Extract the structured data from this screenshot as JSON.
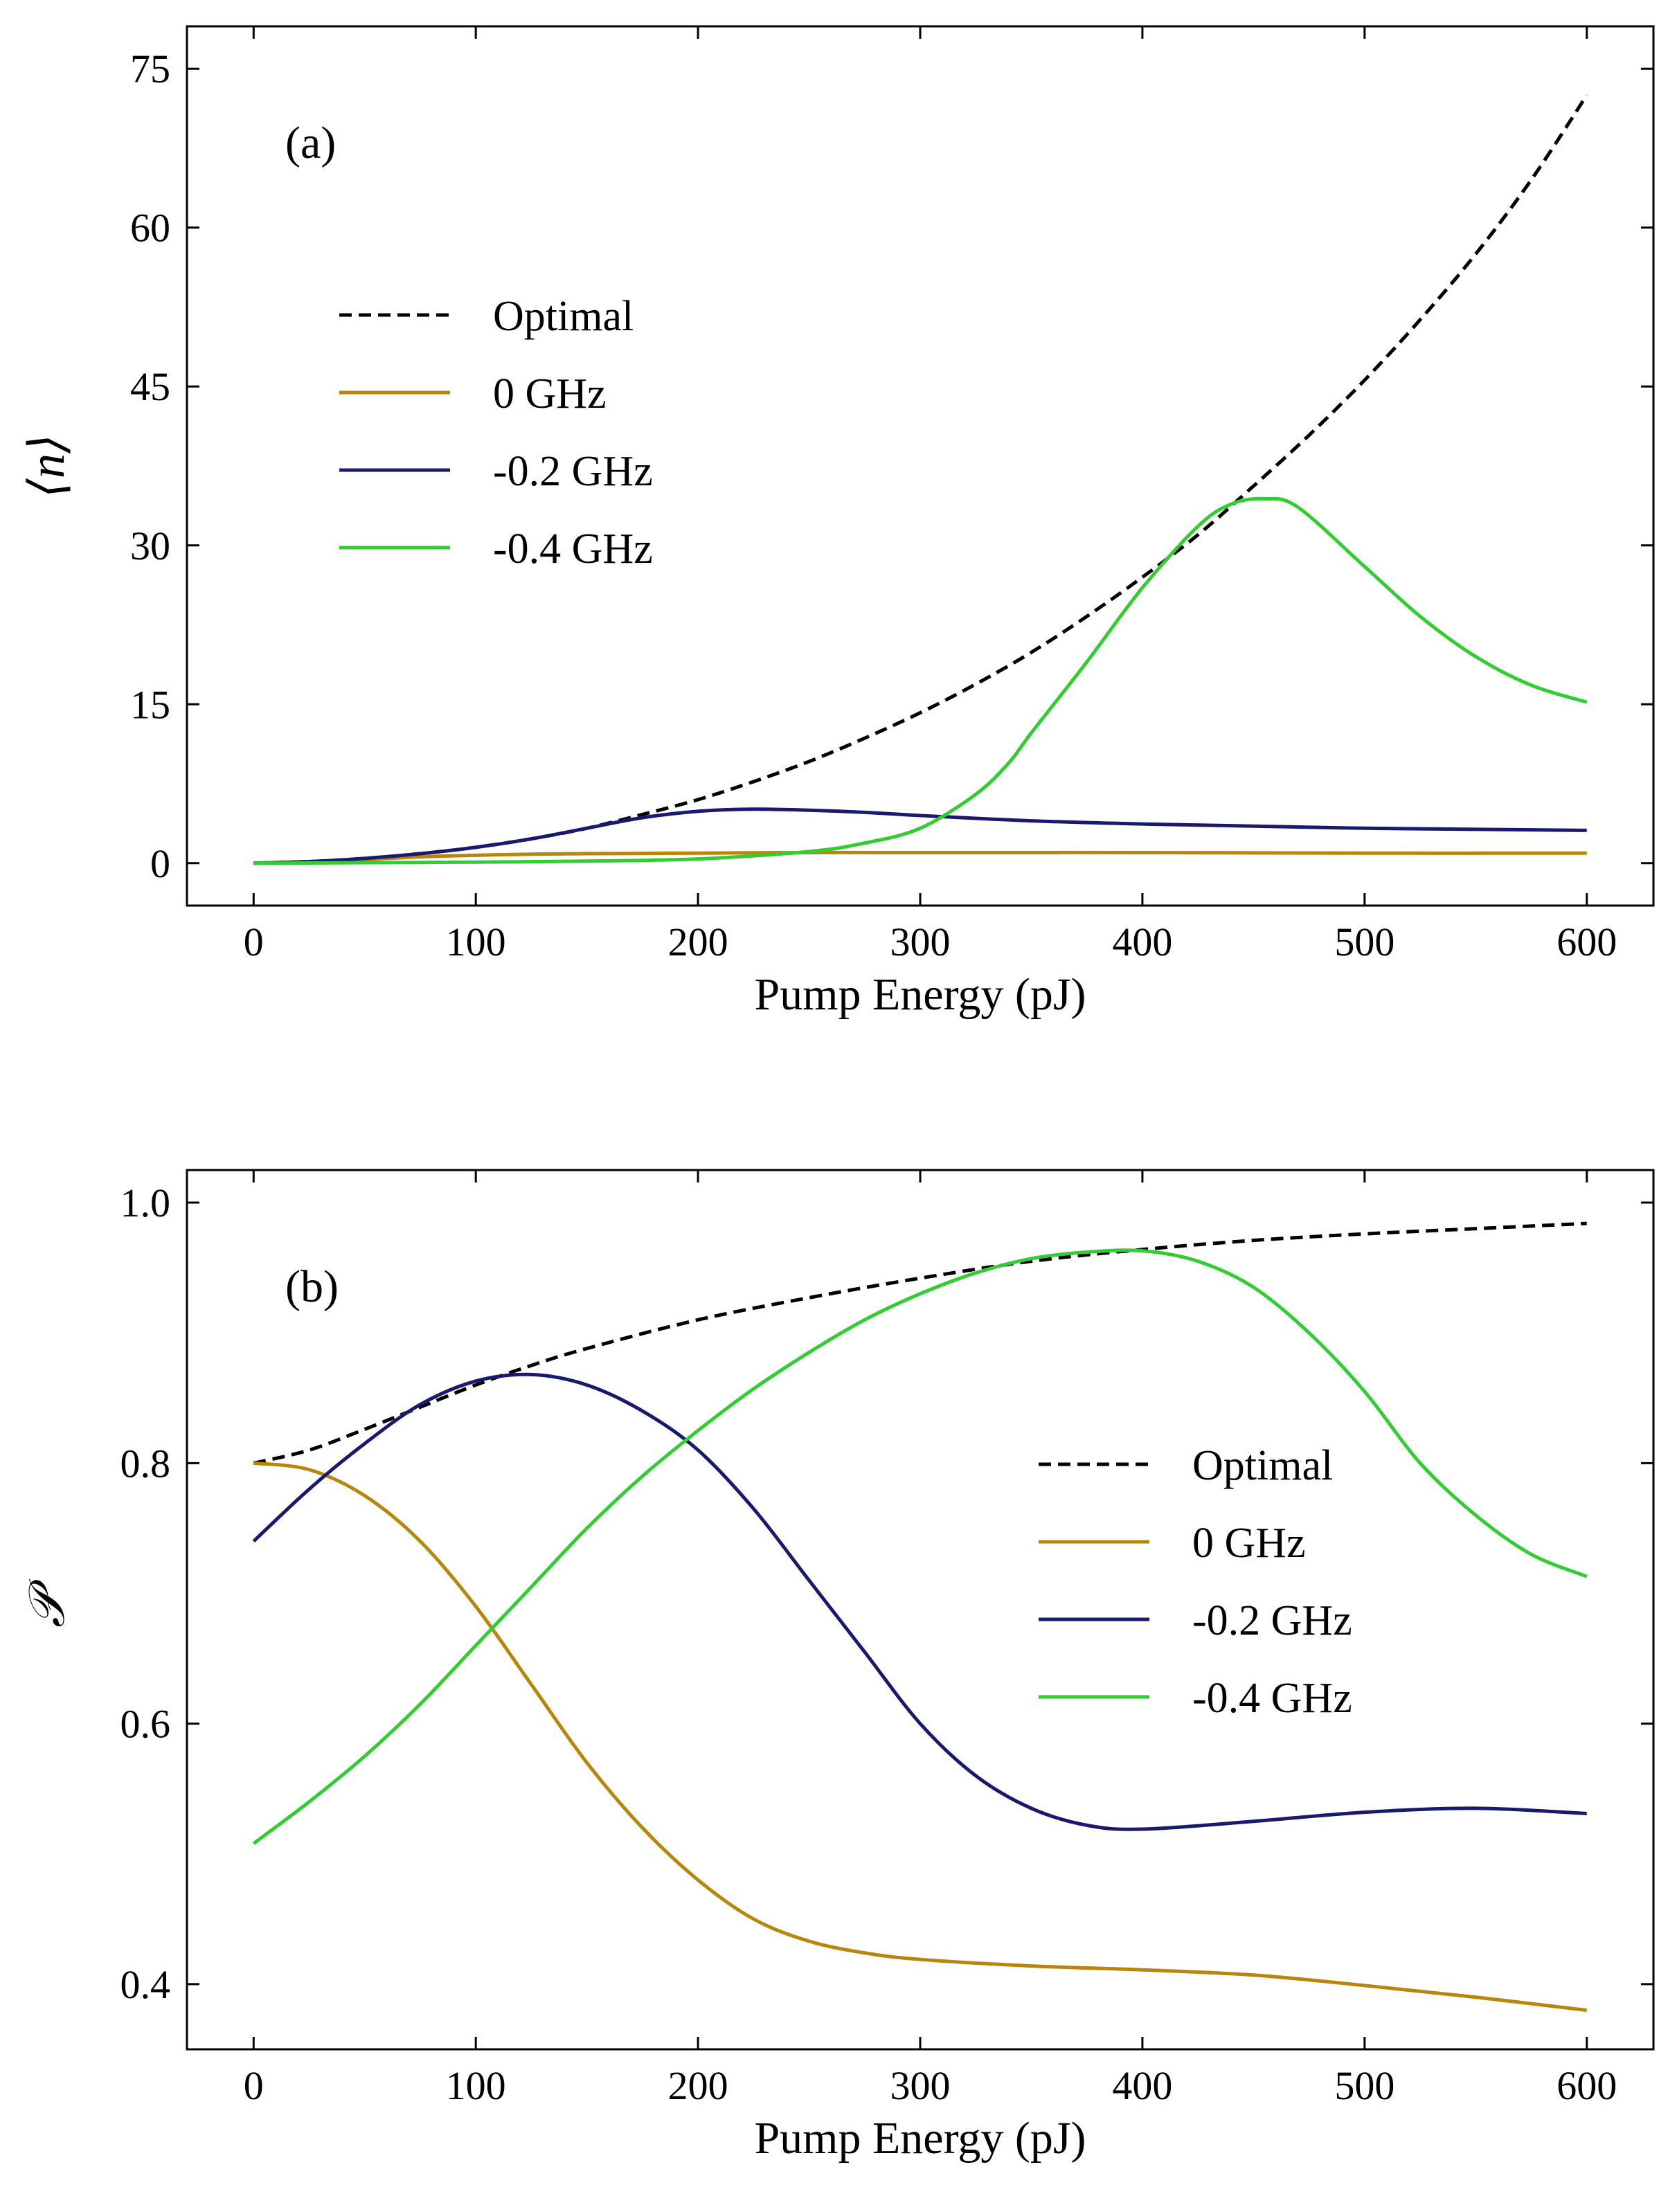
{
  "chart_data": [
    {
      "type": "line",
      "panel_label": "(a)",
      "title": "",
      "xlabel": "Pump Energy (pJ)",
      "ylabel": "⟨n⟩",
      "xlim": [
        -30,
        630
      ],
      "ylim": [
        -4,
        79
      ],
      "xticks": [
        0,
        100,
        200,
        300,
        400,
        500,
        600
      ],
      "yticks": [
        0,
        15,
        30,
        45,
        60,
        75
      ],
      "grid": false,
      "legend_position": "center-left",
      "series": [
        {
          "name": "Optimal",
          "color": "#000000",
          "dash": true,
          "x": [
            0,
            25,
            50,
            75,
            100,
            125,
            150,
            175,
            200,
            225,
            250,
            275,
            300,
            325,
            350,
            375,
            400,
            425,
            450,
            475,
            500,
            525,
            550,
            575,
            600
          ],
          "y": [
            0,
            0.15,
            0.45,
            0.9,
            1.5,
            2.3,
            3.3,
            4.6,
            6.0,
            7.7,
            9.6,
            11.8,
            14.2,
            16.9,
            19.9,
            23.3,
            27.0,
            31.0,
            35.6,
            40.4,
            45.6,
            51.3,
            57.5,
            64.5,
            72.5
          ]
        },
        {
          "name": "0 GHz",
          "color": "#b8860b",
          "dash": false,
          "x": [
            0,
            25,
            50,
            75,
            100,
            125,
            150,
            200,
            250,
            300,
            400,
            500,
            600
          ],
          "y": [
            0,
            0.15,
            0.35,
            0.6,
            0.75,
            0.85,
            0.9,
            0.95,
            1.0,
            1.0,
            1.0,
            0.95,
            0.95
          ]
        },
        {
          "name": "-0.2 GHz",
          "color": "#191970",
          "dash": false,
          "x": [
            0,
            25,
            50,
            75,
            100,
            125,
            150,
            175,
            200,
            225,
            250,
            275,
            300,
            350,
            400,
            450,
            500,
            550,
            600
          ],
          "y": [
            0,
            0.15,
            0.45,
            0.9,
            1.5,
            2.3,
            3.3,
            4.3,
            4.9,
            5.1,
            5.0,
            4.8,
            4.5,
            4.0,
            3.7,
            3.5,
            3.3,
            3.2,
            3.1
          ]
        },
        {
          "name": "-0.4 GHz",
          "color": "#32cd32",
          "dash": false,
          "x": [
            0,
            50,
            100,
            150,
            200,
            250,
            275,
            300,
            325,
            340,
            350,
            375,
            400,
            425,
            440,
            455,
            470,
            500,
            525,
            550,
            575,
            600
          ],
          "y": [
            0,
            0.05,
            0.1,
            0.2,
            0.4,
            1.1,
            1.9,
            3.3,
            6.5,
            9.5,
            12.3,
            19.0,
            26.0,
            31.8,
            33.9,
            34.4,
            33.6,
            28.0,
            23.3,
            19.5,
            16.8,
            15.2
          ]
        }
      ]
    },
    {
      "type": "line",
      "panel_label": "(b)",
      "title": "",
      "xlabel": "Pump Energy (pJ)",
      "ylabel": "𝒫",
      "xlim": [
        -30,
        630
      ],
      "ylim": [
        0.35,
        1.025
      ],
      "xticks": [
        0,
        100,
        200,
        300,
        400,
        500,
        600
      ],
      "yticks": [
        0.4,
        0.6,
        0.8,
        1.0
      ],
      "grid": false,
      "legend_position": "center-right",
      "series": [
        {
          "name": "Optimal",
          "color": "#000000",
          "dash": true,
          "x": [
            0,
            25,
            50,
            75,
            100,
            125,
            150,
            200,
            250,
            300,
            350,
            400,
            450,
            500,
            550,
            600
          ],
          "y": [
            0.8,
            0.81,
            0.826,
            0.843,
            0.86,
            0.875,
            0.888,
            0.91,
            0.927,
            0.942,
            0.955,
            0.964,
            0.971,
            0.976,
            0.98,
            0.984
          ]
        },
        {
          "name": "0 GHz",
          "color": "#b8860b",
          "dash": false,
          "x": [
            0,
            25,
            50,
            75,
            100,
            125,
            150,
            175,
            200,
            225,
            250,
            275,
            300,
            350,
            400,
            450,
            500,
            550,
            600
          ],
          "y": [
            0.8,
            0.795,
            0.775,
            0.74,
            0.69,
            0.63,
            0.57,
            0.52,
            0.48,
            0.45,
            0.433,
            0.424,
            0.419,
            0.414,
            0.411,
            0.407,
            0.399,
            0.39,
            0.38
          ]
        },
        {
          "name": "-0.2 GHz",
          "color": "#191970",
          "dash": false,
          "x": [
            0,
            25,
            50,
            75,
            100,
            125,
            150,
            175,
            200,
            225,
            250,
            275,
            300,
            325,
            350,
            375,
            400,
            450,
            500,
            550,
            600
          ],
          "y": [
            0.74,
            0.78,
            0.815,
            0.845,
            0.863,
            0.868,
            0.86,
            0.84,
            0.81,
            0.765,
            0.71,
            0.655,
            0.6,
            0.56,
            0.535,
            0.522,
            0.519,
            0.525,
            0.532,
            0.535,
            0.531
          ]
        },
        {
          "name": "-0.4 GHz",
          "color": "#32cd32",
          "dash": false,
          "x": [
            0,
            25,
            50,
            75,
            100,
            125,
            150,
            175,
            200,
            225,
            250,
            275,
            300,
            325,
            350,
            375,
            400,
            425,
            450,
            475,
            500,
            525,
            550,
            575,
            600
          ],
          "y": [
            0.508,
            0.54,
            0.575,
            0.615,
            0.66,
            0.705,
            0.75,
            0.79,
            0.825,
            0.857,
            0.885,
            0.91,
            0.93,
            0.946,
            0.957,
            0.962,
            0.963,
            0.955,
            0.935,
            0.9,
            0.855,
            0.8,
            0.76,
            0.73,
            0.713
          ]
        }
      ]
    }
  ]
}
